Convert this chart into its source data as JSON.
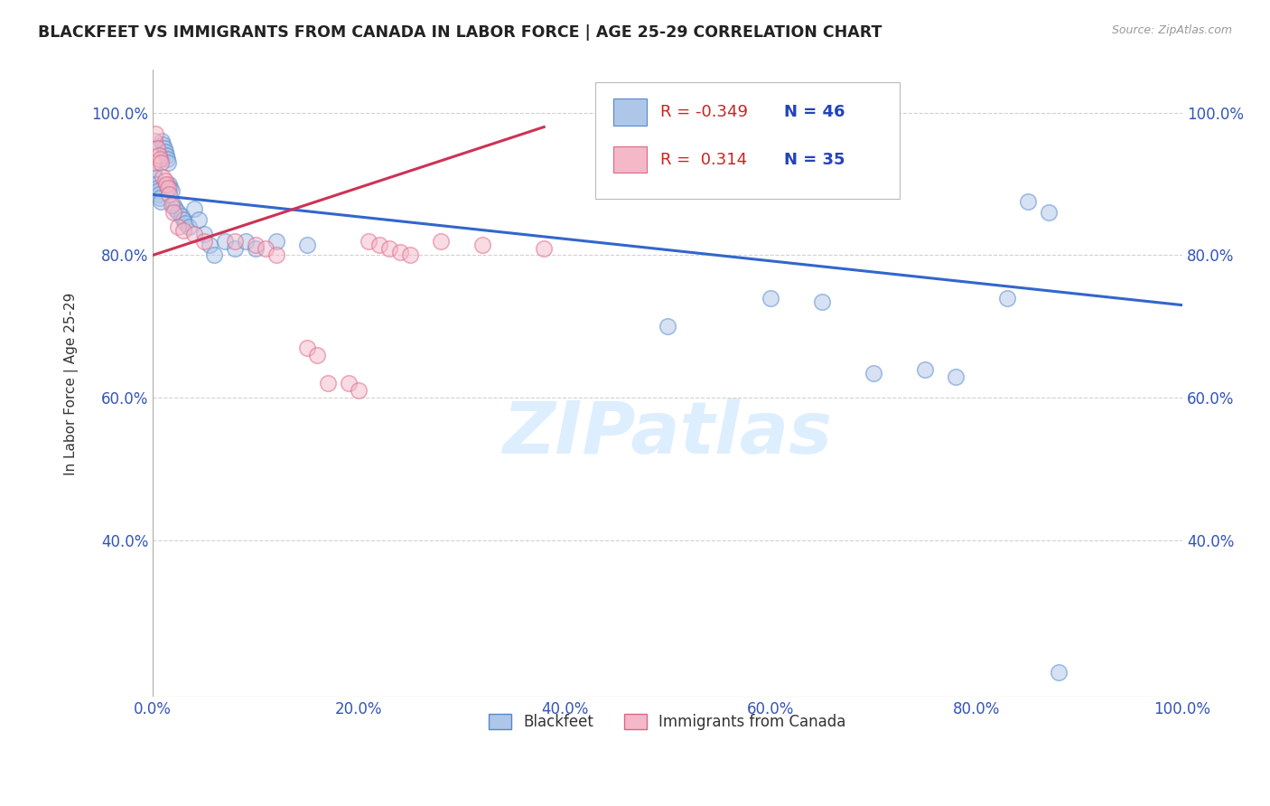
{
  "title": "BLACKFEET VS IMMIGRANTS FROM CANADA IN LABOR FORCE | AGE 25-29 CORRELATION CHART",
  "source": "Source: ZipAtlas.com",
  "ylabel": "In Labor Force | Age 25-29",
  "xlim": [
    0,
    1.0
  ],
  "ylim": [
    0.18,
    1.06
  ],
  "xticks": [
    0.0,
    0.2,
    0.4,
    0.6,
    0.8,
    1.0
  ],
  "yticks": [
    0.4,
    0.6,
    0.8,
    1.0
  ],
  "xticklabels": [
    "0.0%",
    "20.0%",
    "40.0%",
    "60.0%",
    "80.0%",
    "100.0%"
  ],
  "yticklabels": [
    "40.0%",
    "60.0%",
    "80.0%",
    "100.0%"
  ],
  "blue_R": "-0.349",
  "blue_N": "46",
  "pink_R": "0.314",
  "pink_N": "35",
  "blue_label": "Blackfeet",
  "pink_label": "Immigrants from Canada",
  "blue_scatter_color": "#aec6e8",
  "pink_scatter_color": "#f4b8c8",
  "blue_edge_color": "#5588cc",
  "pink_edge_color": "#dd6688",
  "blue_line_color": "#3366cc",
  "pink_line_color": "#cc3355",
  "background_color": "#ffffff",
  "grid_color": "#cccccc",
  "watermark_text": "ZIPatlas",
  "watermark_color": "#ddeeff",
  "title_color": "#222222",
  "axis_label_color": "#333333",
  "tick_color": "#3355bb",
  "source_color": "#999999",
  "blue_scatter_x": [
    0.001,
    0.002,
    0.003,
    0.004,
    0.005,
    0.006,
    0.007,
    0.008,
    0.009,
    0.01,
    0.011,
    0.012,
    0.013,
    0.014,
    0.015,
    0.016,
    0.017,
    0.018,
    0.02,
    0.022,
    0.025,
    0.028,
    0.03,
    0.032,
    0.035,
    0.04,
    0.045,
    0.05,
    0.055,
    0.06,
    0.07,
    0.08,
    0.09,
    0.1,
    0.12,
    0.15,
    0.5,
    0.6,
    0.65,
    0.7,
    0.75,
    0.78,
    0.83,
    0.85,
    0.87,
    0.88
  ],
  "blue_scatter_y": [
    0.92,
    0.91,
    0.9,
    0.895,
    0.89,
    0.885,
    0.88,
    0.875,
    0.96,
    0.955,
    0.95,
    0.945,
    0.94,
    0.935,
    0.93,
    0.9,
    0.895,
    0.89,
    0.87,
    0.865,
    0.86,
    0.855,
    0.85,
    0.845,
    0.84,
    0.865,
    0.85,
    0.83,
    0.815,
    0.8,
    0.82,
    0.81,
    0.82,
    0.81,
    0.82,
    0.815,
    0.7,
    0.74,
    0.735,
    0.635,
    0.64,
    0.63,
    0.74,
    0.875,
    0.86,
    0.215
  ],
  "pink_scatter_x": [
    0.001,
    0.002,
    0.003,
    0.004,
    0.006,
    0.007,
    0.008,
    0.01,
    0.012,
    0.013,
    0.015,
    0.016,
    0.018,
    0.02,
    0.025,
    0.03,
    0.04,
    0.05,
    0.08,
    0.1,
    0.11,
    0.12,
    0.15,
    0.16,
    0.17,
    0.19,
    0.2,
    0.21,
    0.22,
    0.23,
    0.24,
    0.25,
    0.28,
    0.32,
    0.38
  ],
  "pink_scatter_y": [
    0.93,
    0.96,
    0.97,
    0.95,
    0.94,
    0.935,
    0.93,
    0.91,
    0.905,
    0.9,
    0.895,
    0.885,
    0.87,
    0.86,
    0.84,
    0.835,
    0.83,
    0.82,
    0.82,
    0.815,
    0.81,
    0.8,
    0.67,
    0.66,
    0.62,
    0.62,
    0.61,
    0.82,
    0.815,
    0.81,
    0.805,
    0.8,
    0.82,
    0.815,
    0.81
  ],
  "blue_line_x0": 0.0,
  "blue_line_x1": 1.0,
  "blue_line_y0": 0.885,
  "blue_line_y1": 0.73,
  "pink_line_x0": 0.0,
  "pink_line_x1": 0.38,
  "pink_line_y0": 0.8,
  "pink_line_y1": 0.98
}
